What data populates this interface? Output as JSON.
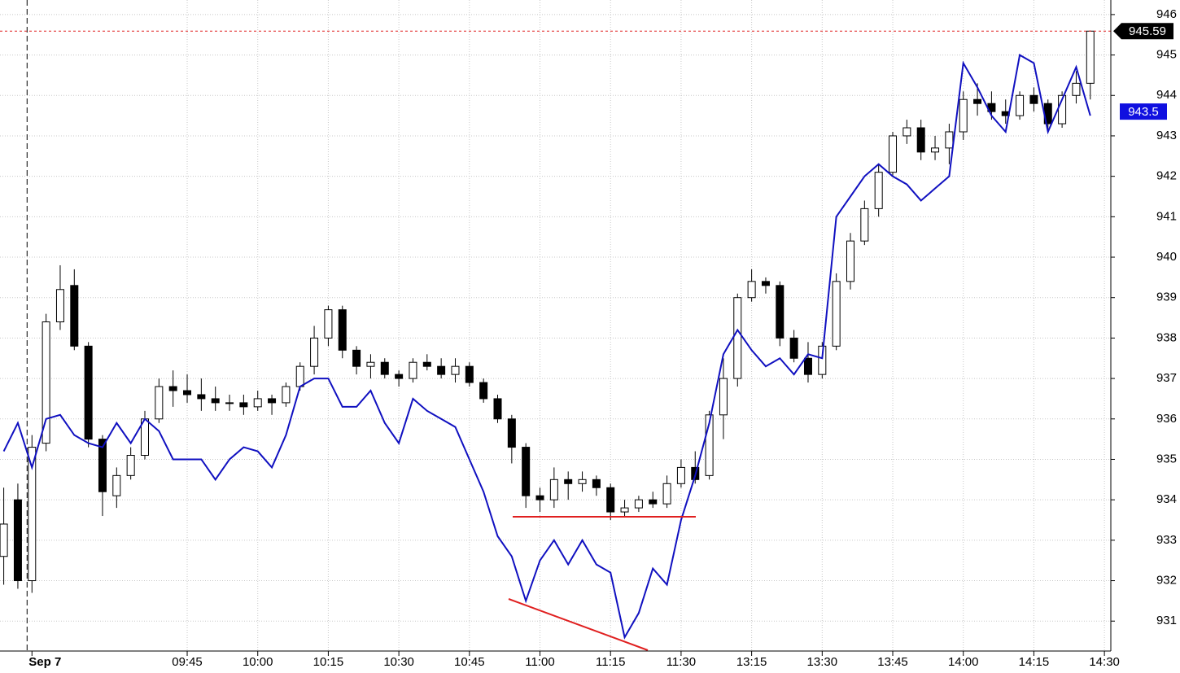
{
  "chart_data": {
    "type": "candlestick",
    "categories": [
      null,
      null,
      "Sep 7",
      null,
      null,
      null,
      null,
      null,
      null,
      null,
      null,
      null,
      null,
      "09:45",
      null,
      null,
      null,
      null,
      "10:00",
      null,
      null,
      null,
      null,
      "10:15",
      null,
      null,
      null,
      null,
      "10:30",
      null,
      null,
      null,
      null,
      "10:45",
      null,
      null,
      null,
      null,
      "11:00",
      null,
      null,
      null,
      null,
      "11:15",
      null,
      null,
      null,
      null,
      "11:30",
      null,
      null,
      null,
      null,
      "13:15",
      null,
      null,
      null,
      null,
      "13:30",
      null,
      null,
      null,
      null,
      "13:45",
      null,
      null,
      null,
      null,
      "14:00",
      null,
      null,
      null,
      null,
      "14:15",
      null,
      null,
      null,
      null,
      "14:30"
    ],
    "open": [
      932.6,
      934,
      932,
      935.4,
      938.4,
      939.3,
      937.8,
      935.5,
      934.1,
      934.6,
      935.1,
      936,
      936.8,
      936.7,
      936.6,
      936.5,
      936.4,
      936.4,
      936.3,
      936.5,
      936.4,
      936.8,
      937.3,
      938,
      938.7,
      937.7,
      937.3,
      937.4,
      937.1,
      937,
      937.4,
      937.3,
      937.1,
      937.3,
      936.9,
      936.5,
      936,
      935.3,
      934.1,
      934,
      934.5,
      934.4,
      934.5,
      934.3,
      933.7,
      933.8,
      934,
      933.9,
      934.4,
      934.8,
      934.6,
      936.1,
      937,
      939,
      939.4,
      939.3,
      938,
      937.5,
      937.1,
      937.8,
      939.4,
      940.4,
      941.2,
      942.1,
      943,
      943.2,
      942.6,
      942.7,
      943.1,
      943.9,
      943.8,
      943.6,
      943.5,
      944,
      943.8,
      943.3,
      944,
      944.3,
      null
    ],
    "high": [
      934.3,
      934.4,
      935.6,
      938.6,
      939.8,
      939.7,
      937.9,
      935.6,
      934.8,
      935.3,
      936.2,
      937,
      937.2,
      937.1,
      937,
      936.8,
      936.6,
      936.6,
      936.7,
      936.6,
      936.9,
      937.4,
      938.3,
      938.8,
      938.8,
      937.8,
      937.6,
      937.5,
      937.2,
      937.5,
      937.6,
      937.5,
      937.5,
      937.4,
      937,
      936.6,
      936.1,
      935.4,
      934.3,
      934.8,
      934.7,
      934.7,
      934.6,
      934.4,
      934,
      934.1,
      934.2,
      934.6,
      935,
      935.2,
      936.2,
      937.5,
      939.1,
      939.7,
      939.5,
      939.4,
      938.2,
      937.9,
      937.9,
      939.6,
      940.6,
      941.4,
      942.3,
      943.1,
      943.4,
      943.4,
      943,
      943.3,
      944.1,
      944.3,
      944.1,
      943.9,
      944.1,
      944.2,
      943.9,
      944.1,
      944.6,
      945.6,
      null
    ],
    "low": [
      931.9,
      931.8,
      931.7,
      935.2,
      938.2,
      937.7,
      935.3,
      933.6,
      933.8,
      934.5,
      935,
      935.9,
      936.3,
      936.4,
      936.2,
      936.2,
      936.2,
      936.1,
      936.2,
      936.1,
      936.3,
      936.7,
      937.1,
      937.8,
      937.5,
      937.1,
      937,
      937,
      936.8,
      936.9,
      937.2,
      937,
      936.9,
      936.8,
      936.4,
      935.9,
      934.9,
      933.8,
      933.7,
      933.8,
      934,
      934.2,
      934.1,
      933.5,
      933.6,
      933.7,
      933.8,
      933.8,
      934.3,
      934.4,
      934.5,
      935.5,
      936.8,
      938.9,
      939.1,
      937.8,
      937.4,
      936.9,
      937,
      937.7,
      939.2,
      940.3,
      941,
      942,
      942.8,
      942.4,
      942.4,
      942.3,
      942.9,
      943.5,
      943.4,
      943.3,
      943.4,
      943.6,
      943.1,
      943.2,
      943.8,
      943.9,
      null
    ],
    "close": [
      933.4,
      932,
      935.3,
      938.4,
      939.2,
      937.8,
      935.5,
      934.2,
      934.6,
      935.1,
      936,
      936.8,
      936.7,
      936.6,
      936.5,
      936.4,
      936.4,
      936.3,
      936.5,
      936.4,
      936.8,
      937.3,
      938,
      938.7,
      937.7,
      937.3,
      937.4,
      937.1,
      937,
      937.4,
      937.3,
      937.1,
      937.3,
      936.9,
      936.5,
      936,
      935.3,
      934.1,
      934,
      934.5,
      934.4,
      934.5,
      934.3,
      933.7,
      933.8,
      934,
      933.9,
      934.4,
      934.8,
      934.5,
      936.1,
      937,
      939,
      939.4,
      939.3,
      938,
      937.5,
      937.1,
      937.8,
      939.4,
      940.4,
      941.2,
      942.1,
      943,
      943.2,
      942.6,
      942.7,
      943.1,
      943.9,
      943.8,
      943.6,
      943.5,
      944,
      943.8,
      943.3,
      944,
      944.3,
      945.59,
      null
    ],
    "line": {
      "color": "#1010c0",
      "values": [
        935.2,
        935.9,
        934.8,
        936,
        936.1,
        935.6,
        935.4,
        935.3,
        935.9,
        935.4,
        936,
        935.7,
        935,
        935,
        935,
        934.5,
        935,
        935.3,
        935.2,
        934.8,
        935.6,
        936.8,
        937,
        937,
        936.3,
        936.3,
        936.7,
        935.9,
        935.4,
        936.5,
        936.2,
        936,
        935.8,
        935,
        934.2,
        933.1,
        932.6,
        931.5,
        932.5,
        933,
        932.4,
        933,
        932.4,
        932.2,
        930.6,
        931.2,
        932.3,
        931.9,
        933.5,
        934.6,
        935.9,
        937.6,
        938.2,
        937.7,
        937.3,
        937.5,
        937.1,
        937.6,
        937.5,
        941,
        941.5,
        942,
        942.3,
        942,
        941.8,
        941.4,
        941.7,
        942,
        944.8,
        944.2,
        943.5,
        943.1,
        945,
        944.8,
        943.1,
        943.9,
        944.7,
        943.5,
        null
      ]
    },
    "ylim": [
      930.26,
      946.36
    ],
    "yticks": [
      931,
      932,
      933,
      934,
      935,
      936,
      937,
      938,
      939,
      940,
      941,
      942,
      943,
      944,
      945,
      946
    ],
    "grid": true
  }
}
